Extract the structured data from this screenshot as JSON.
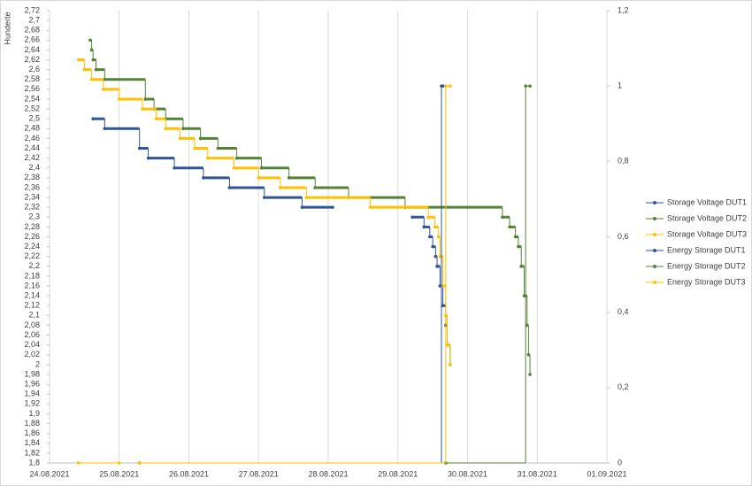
{
  "chart_data": {
    "type": "step",
    "y_axis_title": "Hunderte",
    "grid": "x",
    "legend": "right",
    "xlim": [
      "2021-08-24T00:00",
      "2021-09-01T00:00"
    ],
    "xticks": [
      {
        "value": "2021-08-24T00:00",
        "label": "24.08.2021"
      },
      {
        "value": "2021-08-25T00:00",
        "label": "25.08.2021"
      },
      {
        "value": "2021-08-26T00:00",
        "label": "26.08.2021"
      },
      {
        "value": "2021-08-27T00:00",
        "label": "27.08.2021"
      },
      {
        "value": "2021-08-28T00:00",
        "label": "28.08.2021"
      },
      {
        "value": "2021-08-29T00:00",
        "label": "29.08.2021"
      },
      {
        "value": "2021-08-30T00:00",
        "label": "30.08.2021"
      },
      {
        "value": "2021-08-31T00:00",
        "label": "31.08.2021"
      },
      {
        "value": "2021-09-01T00:00",
        "label": "01.09.2021"
      }
    ],
    "ylim": [
      1.8,
      2.72
    ],
    "yticks": [
      {
        "value": 1.8,
        "label": "1,8"
      },
      {
        "value": 1.82,
        "label": "1,82"
      },
      {
        "value": 1.84,
        "label": "1,84"
      },
      {
        "value": 1.86,
        "label": "1,86"
      },
      {
        "value": 1.88,
        "label": "1,88"
      },
      {
        "value": 1.9,
        "label": "1,9"
      },
      {
        "value": 1.92,
        "label": "1,92"
      },
      {
        "value": 1.94,
        "label": "1,94"
      },
      {
        "value": 1.96,
        "label": "1,96"
      },
      {
        "value": 1.98,
        "label": "1,98"
      },
      2,
      {
        "value": 2.02,
        "label": "2,02"
      },
      {
        "value": 2.04,
        "label": "2,04"
      },
      {
        "value": 2.06,
        "label": "2,06"
      },
      {
        "value": 2.08,
        "label": "2,08"
      },
      {
        "value": 2.1,
        "label": "2,1"
      },
      {
        "value": 2.12,
        "label": "2,12"
      },
      {
        "value": 2.14,
        "label": "2,14"
      },
      {
        "value": 2.16,
        "label": "2,16"
      },
      {
        "value": 2.18,
        "label": "2,18"
      },
      {
        "value": 2.2,
        "label": "2,2"
      },
      {
        "value": 2.22,
        "label": "2,22"
      },
      {
        "value": 2.24,
        "label": "2,24"
      },
      {
        "value": 2.26,
        "label": "2,26"
      },
      {
        "value": 2.28,
        "label": "2,28"
      },
      {
        "value": 2.3,
        "label": "2,3"
      },
      {
        "value": 2.32,
        "label": "2,32"
      },
      {
        "value": 2.34,
        "label": "2,34"
      },
      {
        "value": 2.36,
        "label": "2,36"
      },
      {
        "value": 2.38,
        "label": "2,38"
      },
      {
        "value": 2.4,
        "label": "2,4"
      },
      {
        "value": 2.42,
        "label": "2,42"
      },
      {
        "value": 2.44,
        "label": "2,44"
      },
      {
        "value": 2.46,
        "label": "2,46"
      },
      {
        "value": 2.48,
        "label": "2,48"
      },
      {
        "value": 2.5,
        "label": "2,5"
      },
      {
        "value": 2.52,
        "label": "2,52"
      },
      {
        "value": 2.54,
        "label": "2,54"
      },
      {
        "value": 2.56,
        "label": "2,56"
      },
      {
        "value": 2.58,
        "label": "2,58"
      },
      {
        "value": 2.6,
        "label": "2,6"
      },
      {
        "value": 2.62,
        "label": "2,62"
      },
      {
        "value": 2.64,
        "label": "2,64"
      },
      {
        "value": 2.66,
        "label": "2,66"
      },
      {
        "value": 2.68,
        "label": "2,68"
      },
      {
        "value": 2.7,
        "label": "2,7"
      },
      {
        "value": 2.72,
        "label": "2,72"
      }
    ],
    "y2lim": [
      0,
      1.2
    ],
    "y2ticks": [
      0,
      {
        "value": 0.2,
        "label": "0,2"
      },
      {
        "value": 0.4,
        "label": "0,4"
      },
      {
        "value": 0.6,
        "label": "0,6"
      },
      {
        "value": 0.8,
        "label": "0,8"
      },
      1,
      {
        "value": 1.2,
        "label": "1,2"
      }
    ],
    "series": [
      {
        "name": "Storage Voltage DUT1",
        "color": "#2f5597",
        "x": [
          "2021-08-24T15:00",
          "2021-08-24T19:00",
          "2021-08-25T07:00",
          "2021-08-25T10:00",
          "2021-08-25T19:00",
          "2021-08-26T05:00",
          "2021-08-26T14:00",
          "2021-08-27T02:00",
          "2021-08-27T15:00",
          "2021-08-28T01:30",
          "2021-08-28T02:00",
          "2021-08-29T05:00",
          "2021-08-29T09:00",
          "2021-08-29T11:00",
          "2021-08-29T12:00",
          "2021-08-29T13:00",
          "2021-08-29T13:30",
          "2021-08-29T14:30",
          "2021-08-29T15:30",
          "2021-08-29T16:30",
          "2021-08-29T17:00",
          "2021-08-29T18:00"
        ],
        "values": [
          2.5,
          2.48,
          2.44,
          2.42,
          2.4,
          2.38,
          2.36,
          2.34,
          2.32,
          2.32,
          null,
          2.3,
          2.28,
          2.26,
          2.24,
          2.22,
          2.2,
          2.16,
          2.12,
          2.08,
          2.04,
          2.0
        ]
      },
      {
        "name": "Storage Voltage DUT2",
        "color": "#548235",
        "x": [
          "2021-08-24T14:00",
          "2021-08-24T14:30",
          "2021-08-24T15:00",
          "2021-08-24T16:00",
          "2021-08-24T19:00",
          "2021-08-25T09:00",
          "2021-08-25T12:00",
          "2021-08-25T16:00",
          "2021-08-25T22:00",
          "2021-08-26T04:00",
          "2021-08-26T10:00",
          "2021-08-26T16:30",
          "2021-08-27T01:00",
          "2021-08-27T10:30",
          "2021-08-27T19:30",
          "2021-08-28T07:00",
          "2021-08-29T02:30",
          "2021-08-30T12:00",
          "2021-08-30T14:30",
          "2021-08-30T16:30",
          "2021-08-30T17:30",
          "2021-08-30T18:30",
          "2021-08-30T19:30",
          "2021-08-30T20:30",
          "2021-08-30T21:00",
          "2021-08-30T21:30"
        ],
        "values": [
          2.66,
          2.64,
          2.62,
          2.6,
          2.58,
          2.54,
          2.52,
          2.5,
          2.48,
          2.46,
          2.44,
          2.42,
          2.4,
          2.38,
          2.36,
          2.34,
          2.32,
          2.3,
          2.28,
          2.26,
          2.24,
          2.2,
          2.14,
          2.08,
          2.02,
          1.98
        ]
      },
      {
        "name": "Storage Voltage DUT3",
        "color": "#ffc000",
        "x": [
          "2021-08-24T10:00",
          "2021-08-24T12:00",
          "2021-08-24T14:30",
          "2021-08-24T18:30",
          "2021-08-25T00:00",
          "2021-08-25T08:00",
          "2021-08-25T12:45",
          "2021-08-25T16:00",
          "2021-08-25T21:00",
          "2021-08-26T02:00",
          "2021-08-26T06:30",
          "2021-08-26T15:30",
          "2021-08-27T00:00",
          "2021-08-27T07:30",
          "2021-08-27T16:30",
          "2021-08-28T14:30",
          "2021-08-29T10:30",
          "2021-08-29T12:45",
          "2021-08-29T14:00",
          "2021-08-29T14:30",
          "2021-08-29T15:30",
          "2021-08-29T16:30",
          "2021-08-29T17:00",
          "2021-08-29T18:00"
        ],
        "values": [
          2.62,
          2.6,
          2.58,
          2.56,
          2.54,
          2.52,
          2.5,
          2.48,
          2.46,
          2.44,
          2.42,
          2.4,
          2.38,
          2.36,
          2.34,
          2.32,
          2.3,
          2.28,
          2.26,
          2.22,
          2.16,
          2.1,
          2.04,
          2.0
        ]
      },
      {
        "name": "Energy Storage DUT1",
        "color": "#2f5597",
        "axis": "y2",
        "x": [
          "2021-08-25T07:00",
          "2021-08-29T15:00",
          "2021-08-29T15:30"
        ],
        "values": [
          0,
          1,
          1
        ]
      },
      {
        "name": "Energy Storage DUT2",
        "color": "#548235",
        "axis": "y2",
        "x": [
          "2021-08-29T16:30",
          "2021-08-30T20:00",
          "2021-08-30T21:30"
        ],
        "values": [
          0,
          1,
          1
        ]
      },
      {
        "name": "Energy Storage DUT3",
        "color": "#ffc000",
        "axis": "y2",
        "x": [
          "2021-08-24T10:00",
          "2021-08-25T00:00",
          "2021-08-25T03:00",
          "2021-08-25T07:00",
          "2021-08-29T16:30",
          "2021-08-29T18:00"
        ],
        "values": [
          0,
          0,
          null,
          0,
          1,
          1
        ]
      }
    ]
  }
}
